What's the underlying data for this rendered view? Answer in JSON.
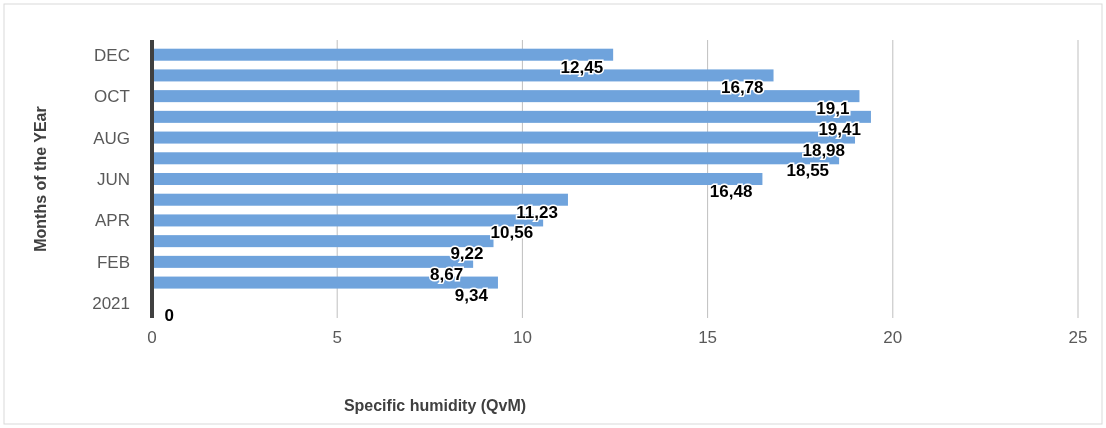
{
  "chart_data": {
    "type": "bar",
    "orientation": "horizontal",
    "xlabel": "Specific humidity (QvM)",
    "ylabel": "Months of the YEar",
    "categories": [
      "DEC",
      null,
      "OCT",
      null,
      "AUG",
      null,
      "JUN",
      null,
      "APR",
      null,
      "FEB",
      null,
      "2021"
    ],
    "values": [
      12.45,
      16.78,
      19.1,
      19.41,
      18.98,
      18.55,
      16.48,
      11.23,
      10.56,
      9.22,
      8.67,
      9.34,
      0
    ],
    "value_labels": [
      "12,45",
      "16,78",
      "19,1",
      "19,41",
      "18,98",
      "18,55",
      "16,48",
      "11,23",
      "10,56",
      "9,22",
      "8,67",
      "9,34",
      "0"
    ],
    "color": "#6fa3dc",
    "xlim": [
      0,
      25
    ],
    "xticks": [
      0,
      5,
      10,
      15,
      20,
      25
    ],
    "grid": "x"
  }
}
